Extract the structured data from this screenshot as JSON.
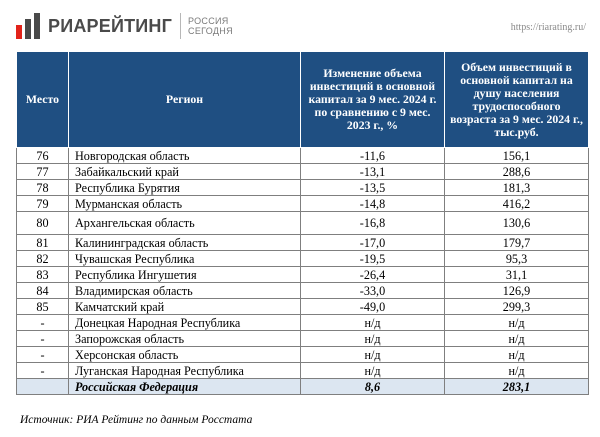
{
  "header": {
    "logo_text": "РИАРЕЙТИНГ",
    "logo_sub_line1": "РОССИЯ",
    "logo_sub_line2": "СЕГОДНЯ",
    "site_url": "https://riarating.ru/",
    "logo_colors": {
      "red": "#e2231a",
      "gray": "#4a4a4a"
    }
  },
  "table": {
    "columns": [
      "Место",
      "Регион",
      "Изменение объема инвестиций в основной капитал за 9 мес. 2024 г. по сравнению с 9 мес. 2023 г., %",
      "Объем инвестиций в основной капитал на душу населения трудоспособного возраста за 9 мес. 2024 г., тыс.руб."
    ],
    "rows": [
      {
        "place": "76",
        "region": "Новгородская область",
        "change": "-11,6",
        "per_capita": "156,1"
      },
      {
        "place": "77",
        "region": "Забайкальский край",
        "change": "-13,1",
        "per_capita": "288,6"
      },
      {
        "place": "78",
        "region": "Республика Бурятия",
        "change": "-13,5",
        "per_capita": "181,3"
      },
      {
        "place": "79",
        "region": "Мурманская область",
        "change": "-14,8",
        "per_capita": "416,2"
      },
      {
        "place": "80",
        "region": "Архангельская область",
        "change": "-16,8",
        "per_capita": "130,6"
      },
      {
        "place": "81",
        "region": "Калининградская область",
        "change": "-17,0",
        "per_capita": "179,7"
      },
      {
        "place": "82",
        "region": "Чувашская Республика",
        "change": "-19,5",
        "per_capita": "95,3"
      },
      {
        "place": "83",
        "region": "Республика Ингушетия",
        "change": "-26,4",
        "per_capita": "31,1"
      },
      {
        "place": "84",
        "region": "Владимирская область",
        "change": "-33,0",
        "per_capita": "126,9"
      },
      {
        "place": "85",
        "region": "Камчатский край",
        "change": "-49,0",
        "per_capita": "299,3"
      },
      {
        "place": "-",
        "region": "Донецкая Народная Республика",
        "change": "н/д",
        "per_capita": "н/д"
      },
      {
        "place": "-",
        "region": "Запорожская область",
        "change": "н/д",
        "per_capita": "н/д"
      },
      {
        "place": "-",
        "region": "Херсонская область",
        "change": "н/д",
        "per_capita": "н/д"
      },
      {
        "place": "-",
        "region": "Луганская Народная Республика",
        "change": "н/д",
        "per_capita": "н/д"
      }
    ],
    "total": {
      "place": "",
      "region": "Российская Федерация",
      "change": "8,6",
      "per_capita": "283,1"
    },
    "colors": {
      "header_bg": "#1f4f82",
      "total_bg": "#dce6f1"
    }
  },
  "source": "Источник: РИА Рейтинг по данным Росстата"
}
